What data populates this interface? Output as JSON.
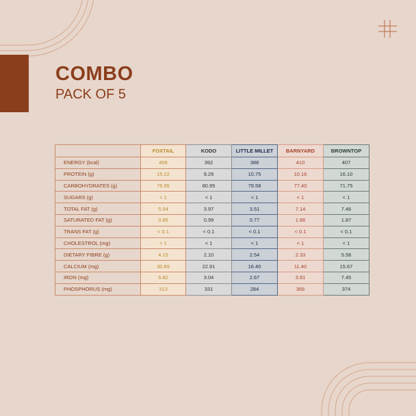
{
  "heading": {
    "title": "COMBO",
    "subtitle": "PACK OF 5"
  },
  "colors": {
    "background": "#e7d6cb",
    "accent": "#8b3e1c",
    "foxtail": "#f4e4cf",
    "kodo": "#dbdadb",
    "little_millet": "#ccd1d8",
    "barnyard": "#eed9d0",
    "browntop": "#d2d8d3"
  },
  "icons": {
    "hash": "hash-icon"
  },
  "table": {
    "columns": [
      "",
      "FOXTAIL",
      "KODO",
      "LITTLE MILLET",
      "BARNYARD",
      "BROWNTOP"
    ],
    "rows": [
      [
        "ENERGY (kcal)",
        "406",
        "392",
        "388",
        "410",
        "407"
      ],
      [
        "PROTEIN (g)",
        "15.22",
        "9.29",
        "10.75",
        "10.16",
        "16.10"
      ],
      [
        "CARBOHYDRATES (g)",
        "75.95",
        "80.95",
        "79.58",
        "77.40",
        "71.75"
      ],
      [
        "SUGARS (g)",
        "< 1",
        "< 1",
        "< 1",
        "< 1",
        "< 1"
      ],
      [
        "TOTAL FAT (g)",
        "5.54",
        "3.97",
        "3.51",
        "7.14",
        "7.46"
      ],
      [
        "SATURATED FAT (g)",
        "0.85",
        "0.99",
        "0.77",
        "1.66",
        "1.87"
      ],
      [
        "TRANS FAT (g)",
        "< 0.1",
        "< 0.1",
        "< 0.1",
        "< 0.1",
        "< 0.1"
      ],
      [
        "CHOLESTROL (mg)",
        "< 1",
        "< 1",
        "< 1",
        "< 1",
        "< 1"
      ],
      [
        "DIETARY FIBRE (g)",
        "4.15",
        "2.10",
        "2.54",
        "2.33",
        "5.58"
      ],
      [
        "CALCIUM (mg)",
        "30.89",
        "22.91",
        "16.40",
        "11.40",
        "15.67"
      ],
      [
        "IRON (mg)",
        "5.82",
        "3.04",
        "2.67",
        "3.81",
        "7.45"
      ],
      [
        "PHOSPHORUS (mg)",
        "313",
        "331",
        "284",
        "366",
        "374"
      ]
    ]
  }
}
